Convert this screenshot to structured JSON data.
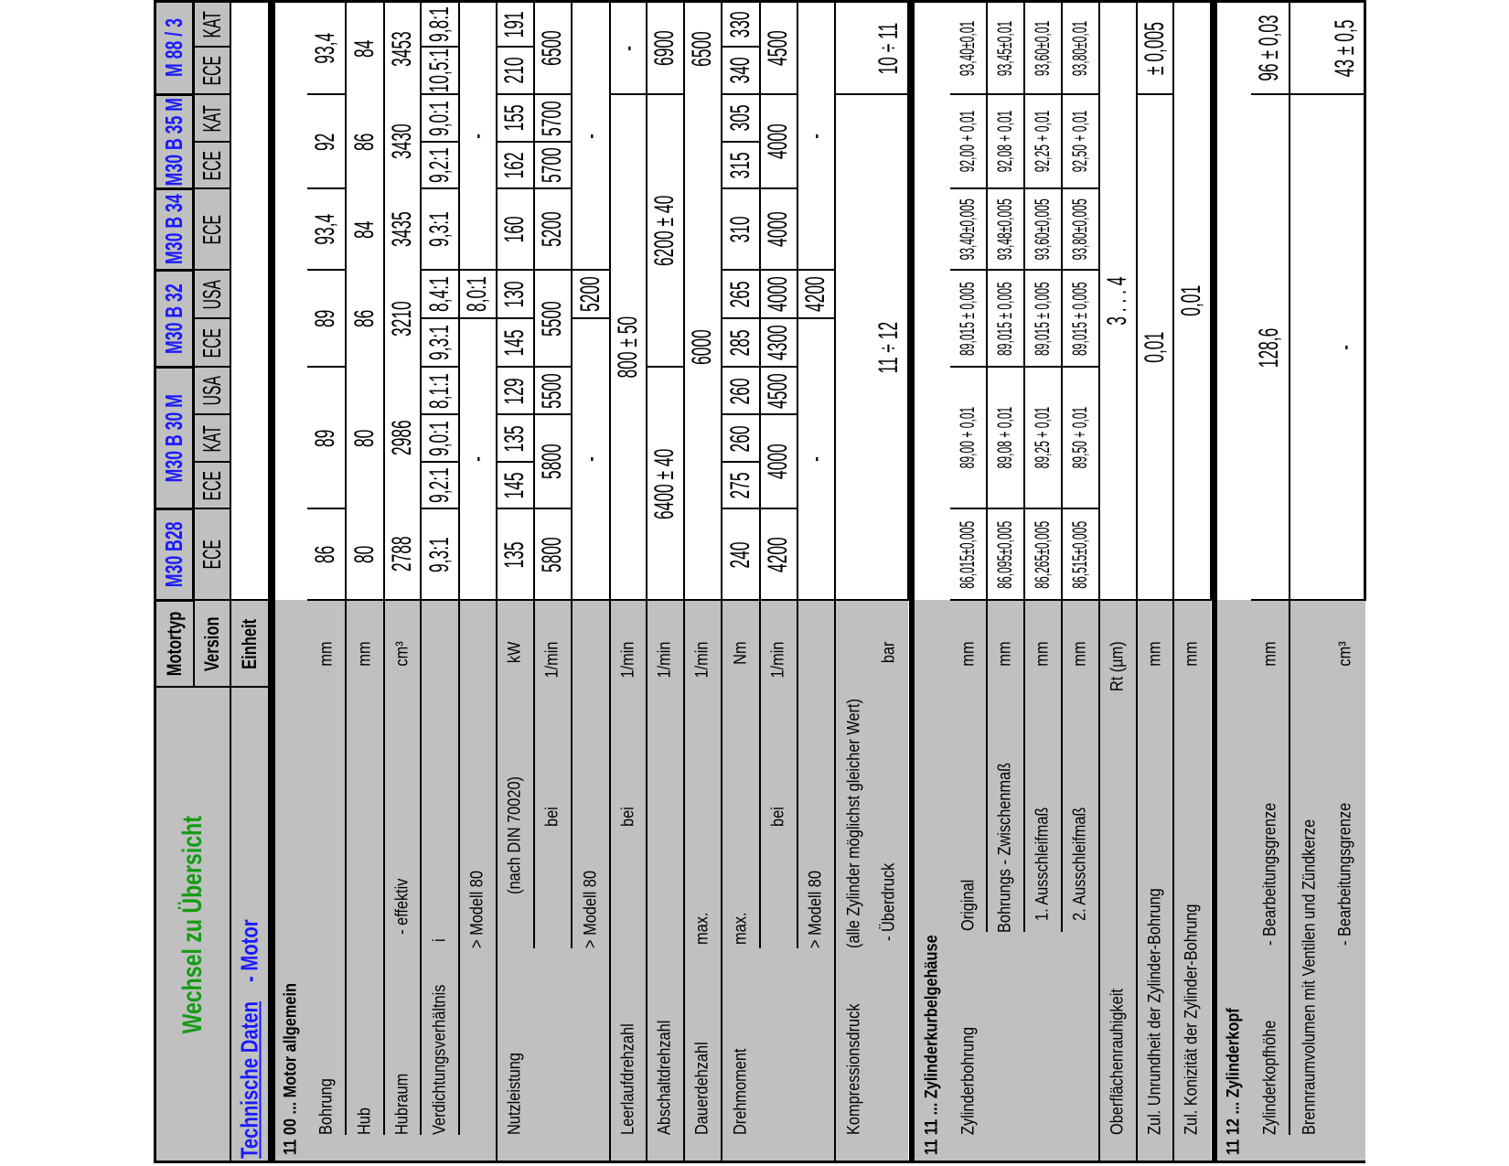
{
  "header": {
    "title": "Wechsel zu Übersicht",
    "motortyp_label": "Motortyp",
    "version_label": "Version",
    "einheit_label": "Einheit",
    "tech_data": "Technische Daten",
    "motor": "- Motor",
    "engines": [
      {
        "name": "M30 B28",
        "versions": [
          "ECE"
        ]
      },
      {
        "name": "M30 B 30 M",
        "versions": [
          "ECE",
          "KAT",
          "USA"
        ]
      },
      {
        "name": "M30 B 32",
        "versions": [
          "ECE",
          "USA"
        ]
      },
      {
        "name": "M30 B 34",
        "versions": [
          "ECE"
        ]
      },
      {
        "name": "M30 B 35 M",
        "versions": [
          "ECE",
          "KAT"
        ]
      },
      {
        "name": "M 88 / 3",
        "versions": [
          "ECE",
          "KAT"
        ]
      }
    ]
  },
  "sections": [
    {
      "title": "11 00 ... Motor allgemein",
      "rows": [
        {
          "label": "Bohrung",
          "unit": "mm",
          "v": [
            "86",
            "89",
            "89",
            "93,4",
            "92",
            "93,4"
          ]
        },
        {
          "label": "Hub",
          "unit": "mm",
          "v": [
            "80",
            "80",
            "86",
            "84",
            "86",
            "84"
          ]
        },
        {
          "label": "Hubraum",
          "sub": "- effektiv",
          "unit": "cm³",
          "v": [
            "2788",
            "2986",
            "3210",
            "3435",
            "3430",
            "3453"
          ]
        },
        {
          "label": "Verdichtungsverhältnis",
          "sub": "i",
          "v": [
            "9,3:1",
            "9,2:1",
            "9,0:1",
            "8,1:1",
            "9,3:1",
            "8,4:1",
            "9,3:1",
            "9,2:1",
            "9,0:1",
            "10,5:1",
            "9,8:1"
          ]
        },
        {
          "sub": "> Modell 80",
          "v": [
            "-",
            "8,0:1",
            "-"
          ]
        },
        {
          "label": "Nutzleistung",
          "sub": "(nach DIN 70020)",
          "unit": "kW",
          "v": [
            "135",
            "145",
            "135",
            "129",
            "145",
            "130",
            "160",
            "162",
            "155",
            "210",
            "191"
          ]
        },
        {
          "sub": "bei",
          "unit": "1/min",
          "v": [
            "5800",
            "5800",
            "5500",
            "5500",
            "5200",
            "5700",
            "5700",
            "6500"
          ]
        },
        {
          "sub": "> Modell 80",
          "v": [
            "-",
            "5200",
            "-"
          ]
        },
        {
          "label": "Leerlaufdrehzahl",
          "sub": "bei",
          "unit": "1/min",
          "v": [
            "800 ± 50",
            "-"
          ]
        },
        {
          "label": "Abschaltdrehzahl",
          "unit": "1/min",
          "v": [
            "6400 ± 40",
            "6200 ± 40",
            "6900"
          ]
        },
        {
          "label": "Dauerdehzahl",
          "sub": "max.",
          "unit": "1/min",
          "v": [
            "6000",
            "6500"
          ]
        },
        {
          "label": "Drehmoment",
          "sub": "max.",
          "unit": "Nm",
          "v": [
            "240",
            "275",
            "260",
            "260",
            "285",
            "265",
            "310",
            "315",
            "305",
            "340",
            "330"
          ]
        },
        {
          "sub": "bei",
          "unit": "1/min",
          "v": [
            "4200",
            "4000",
            "4500",
            "4300",
            "4000",
            "4000",
            "4000",
            "4500"
          ]
        },
        {
          "sub": "> Modell 80",
          "v": [
            "-",
            "4200",
            "-"
          ]
        },
        {
          "label": "Kompressionsdruck",
          "sub": "(alle Zylinder möglichst gleicher Wert)",
          "sub2": "- Überdruck",
          "unit": "bar",
          "v": [
            "11 ÷ 12",
            "10 ÷ 11"
          ]
        }
      ]
    },
    {
      "title": "11 11 ... Zylinderkurbelgehäuse",
      "rows": [
        {
          "label": "Zylinderbohrung",
          "sub": "Original",
          "unit": "mm",
          "v": [
            "86,015±0,005",
            "89,00  + 0,01",
            "89,015 ± 0,005",
            "93,40±0,005",
            "92,00  + 0,01",
            "93,40±0,01"
          ]
        },
        {
          "sub": "Bohrungs - Zwischenmaß",
          "unit": "mm",
          "v": [
            "86,095±0,005",
            "89,08  + 0,01",
            "89,015 ± 0,005",
            "93,48±0,005",
            "92,08  + 0,01",
            "93,45±0,01"
          ]
        },
        {
          "sub": "1. Ausschleifmaß",
          "unit": "mm",
          "v": [
            "86,265±0,005",
            "89,25  + 0,01",
            "89,015 ± 0,005",
            "93,60±0,005",
            "92,25  + 0,01",
            "93,60±0,01"
          ]
        },
        {
          "sub": "2. Ausschleifmaß",
          "unit": "mm",
          "v": [
            "86,515±0,005",
            "89,50  + 0,01",
            "89,015 ± 0,005",
            "93,80±0,005",
            "92,50  + 0,01",
            "93,80±0,01"
          ]
        },
        {
          "label": "Oberflächenrauhigkeit",
          "unit": "Rt (µm)",
          "v": [
            "3 . . . 4"
          ]
        },
        {
          "label": "Zul. Unrundheit der Zylinder-Bohrung",
          "unit": "mm",
          "v": [
            "0,01",
            "± 0,005"
          ]
        },
        {
          "label": "Zul. Konizität der Zylinder-Bohrung",
          "unit": "mm",
          "v": [
            "0,01"
          ]
        }
      ]
    },
    {
      "title": "11 12 ... Zylinderkopf",
      "rows": [
        {
          "label": "Zylinderkopfhöhe",
          "sub": "- Bearbeitungsgrenze",
          "unit": "mm",
          "v": [
            "128,6",
            "96 ± 0,03"
          ]
        },
        {
          "label": "Brennraumvolumen mit Ventilen und Zündkerze",
          "sub2": "- Bearbeitungsgrenze",
          "unit": "cm³",
          "v": [
            "-",
            "43 ± 0,5"
          ]
        }
      ]
    }
  ],
  "colors": {
    "label_bg": "#c0c0c0",
    "link_green": "#139b13",
    "link_blue": "#1a1aff",
    "grid": "#000000"
  }
}
